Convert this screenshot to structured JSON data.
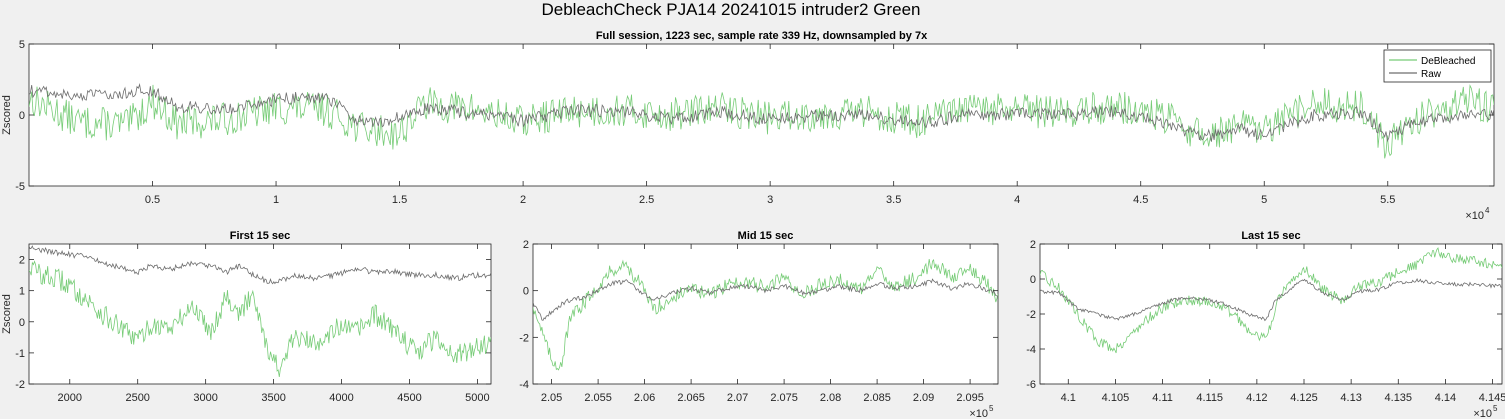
{
  "figure": {
    "title": "DebleachCheck PJA14 20241015  intruder2 Green"
  },
  "colors": {
    "debleached": "#77cc77",
    "raw": "#6e6e6e",
    "background": "#f0f0f0",
    "axes": "#ffffff"
  },
  "chart_data": [
    {
      "type": "line",
      "title": "Full session, 1223 sec, sample rate 339 Hz, downsampled by 7x",
      "xlabel": "",
      "ylabel": "Zscored",
      "xlim": [
        0,
        59300
      ],
      "ylim": [
        -5,
        5
      ],
      "xticks": [
        5000,
        10000,
        15000,
        20000,
        25000,
        30000,
        35000,
        40000,
        45000,
        50000,
        55000
      ],
      "xtick_labels": [
        "0.5",
        "1",
        "1.5",
        "2",
        "2.5",
        "3",
        "3.5",
        "4",
        "4.5",
        "5",
        "5.5"
      ],
      "x_exponent": "4",
      "yticks": [
        -5,
        0,
        5
      ],
      "ytick_labels": [
        "-5",
        "0",
        "5"
      ],
      "legend": [
        "DeBleached",
        "Raw"
      ],
      "legend_position": "top-right",
      "grid": false,
      "series": [
        {
          "name": "DeBleached",
          "x": [
            0,
            2000,
            4000,
            5000,
            6000,
            8000,
            10000,
            12000,
            13500,
            15000,
            16000,
            18000,
            20000,
            22000,
            24000,
            26000,
            28000,
            30000,
            32000,
            34000,
            36000,
            38000,
            40000,
            42000,
            44000,
            46000,
            47500,
            49000,
            50000,
            52000,
            54000,
            55000,
            56000,
            58000,
            59300
          ],
          "values": [
            1.2,
            -0.5,
            -0.7,
            1.0,
            -0.6,
            -0.3,
            0.5,
            0.4,
            -1.0,
            -1.3,
            0.8,
            0.4,
            -0.5,
            0.3,
            0.3,
            0.0,
            0.5,
            -0.2,
            0.1,
            0.2,
            -0.5,
            0.4,
            0.3,
            0.2,
            0.6,
            -0.2,
            -1.5,
            -0.8,
            -1.2,
            0.8,
            0.5,
            -2.2,
            -0.4,
            1.0,
            0.6
          ]
        },
        {
          "name": "Raw",
          "x": [
            0,
            2000,
            4000,
            5000,
            6000,
            8000,
            10000,
            12000,
            13500,
            15000,
            16000,
            18000,
            20000,
            22000,
            24000,
            26000,
            28000,
            30000,
            32000,
            34000,
            36000,
            38000,
            40000,
            42000,
            44000,
            46000,
            47500,
            49000,
            50000,
            52000,
            54000,
            55000,
            56000,
            58000,
            59300
          ],
          "values": [
            1.7,
            1.3,
            1.6,
            1.8,
            0.6,
            0.4,
            1.1,
            1.3,
            -0.6,
            -0.2,
            0.5,
            0.1,
            -0.4,
            0.3,
            0.3,
            -0.3,
            0.2,
            -0.3,
            0.0,
            0.0,
            -0.6,
            0.0,
            0.1,
            0.0,
            0.3,
            -0.6,
            -1.6,
            -1.0,
            -1.4,
            0.0,
            0.2,
            -1.6,
            -0.6,
            0.0,
            0.1
          ]
        }
      ]
    },
    {
      "type": "line",
      "title": "First 15 sec",
      "xlabel": "",
      "ylabel": "Zscored",
      "xlim": [
        1700,
        5100
      ],
      "ylim": [
        -2,
        2.5
      ],
      "xticks": [
        2000,
        2500,
        3000,
        3500,
        4000,
        4500,
        5000
      ],
      "xtick_labels": [
        "2000",
        "2500",
        "3000",
        "3500",
        "4000",
        "4500",
        "5000"
      ],
      "yticks": [
        -2,
        -1,
        0,
        1,
        2
      ],
      "ytick_labels": [
        "-2",
        "-1",
        "0",
        "1",
        "2"
      ],
      "grid": false,
      "series": [
        {
          "name": "DeBleached",
          "x": [
            1700,
            1800,
            1950,
            2100,
            2250,
            2400,
            2500,
            2600,
            2750,
            2900,
            3050,
            3150,
            3250,
            3350,
            3450,
            3550,
            3650,
            3800,
            3950,
            4100,
            4250,
            4400,
            4550,
            4700,
            4850,
            5000,
            5100
          ],
          "values": [
            1.8,
            1.5,
            1.3,
            0.8,
            0.2,
            -0.3,
            -0.6,
            -0.1,
            -0.2,
            0.5,
            -0.3,
            0.9,
            0.2,
            1.0,
            -0.8,
            -1.6,
            -0.5,
            -0.7,
            -0.2,
            -0.3,
            0.2,
            -0.3,
            -1.0,
            -0.5,
            -1.1,
            -0.8,
            -0.6
          ]
        },
        {
          "name": "Raw",
          "x": [
            1700,
            1800,
            1950,
            2100,
            2250,
            2400,
            2500,
            2600,
            2750,
            2900,
            3050,
            3150,
            3250,
            3350,
            3450,
            3550,
            3650,
            3800,
            3950,
            4100,
            4250,
            4400,
            4550,
            4700,
            4850,
            5000,
            5100
          ],
          "values": [
            2.4,
            2.3,
            2.2,
            2.1,
            1.9,
            1.7,
            1.6,
            1.8,
            1.7,
            1.9,
            1.8,
            1.6,
            1.8,
            1.5,
            1.3,
            1.3,
            1.5,
            1.4,
            1.5,
            1.7,
            1.6,
            1.6,
            1.5,
            1.5,
            1.4,
            1.5,
            1.5
          ]
        }
      ]
    },
    {
      "type": "line",
      "title": "Mid 15 sec",
      "xlabel": "",
      "ylabel": "",
      "xlim": [
        204800,
        209800
      ],
      "ylim": [
        -4,
        2
      ],
      "xticks": [
        205000,
        205500,
        206000,
        206500,
        207000,
        207500,
        208000,
        208500,
        209000,
        209500
      ],
      "xtick_labels": [
        "2.05",
        "2.055",
        "2.06",
        "2.065",
        "2.07",
        "2.075",
        "2.08",
        "2.085",
        "2.09",
        "2.095"
      ],
      "x_exponent": "5",
      "yticks": [
        -4,
        -2,
        0,
        2
      ],
      "ytick_labels": [
        "-4",
        "-2",
        "0",
        "2"
      ],
      "grid": false,
      "series": [
        {
          "name": "DeBleached",
          "x": [
            204800,
            204900,
            205000,
            205100,
            205200,
            205350,
            205500,
            205650,
            205800,
            205950,
            206100,
            206300,
            206500,
            206700,
            206900,
            207100,
            207300,
            207500,
            207700,
            207900,
            208100,
            208300,
            208500,
            208700,
            208900,
            209100,
            209300,
            209500,
            209700,
            209800
          ],
          "values": [
            -0.6,
            -1.8,
            -3.0,
            -3.2,
            -1.2,
            -0.5,
            0.2,
            0.9,
            1.1,
            0.3,
            -0.8,
            -0.3,
            0.1,
            -0.2,
            0.3,
            0.4,
            0.1,
            0.6,
            -0.2,
            0.3,
            0.5,
            0.0,
            0.8,
            0.2,
            0.5,
            1.2,
            0.6,
            1.0,
            0.2,
            -0.4
          ]
        },
        {
          "name": "Raw",
          "x": [
            204800,
            204900,
            205000,
            205100,
            205200,
            205350,
            205500,
            205650,
            205800,
            205950,
            206100,
            206300,
            206500,
            206700,
            206900,
            207100,
            207300,
            207500,
            207700,
            207900,
            208100,
            208300,
            208500,
            208700,
            208900,
            209100,
            209300,
            209500,
            209700,
            209800
          ],
          "values": [
            -0.5,
            -1.2,
            -0.9,
            -0.6,
            -0.4,
            -0.3,
            0.0,
            0.3,
            0.4,
            0.0,
            -0.4,
            -0.1,
            0.1,
            -0.1,
            0.1,
            0.2,
            0.0,
            0.2,
            -0.1,
            0.0,
            0.2,
            0.0,
            0.3,
            0.1,
            0.2,
            0.4,
            0.1,
            0.3,
            0.0,
            -0.2
          ]
        }
      ]
    },
    {
      "type": "line",
      "title": "Last 15 sec",
      "xlabel": "",
      "ylabel": "",
      "xlim": [
        409700,
        414600
      ],
      "ylim": [
        -6,
        2
      ],
      "xticks": [
        410000,
        410500,
        411000,
        411500,
        412000,
        412500,
        413000,
        413500,
        414000,
        414500
      ],
      "xtick_labels": [
        "4.1",
        "4.105",
        "4.11",
        "4.115",
        "4.12",
        "4.125",
        "4.13",
        "4.135",
        "4.14",
        "4.145"
      ],
      "x_exponent": "5",
      "yticks": [
        -6,
        -4,
        -2,
        0,
        2
      ],
      "ytick_labels": [
        "-6",
        "-4",
        "-2",
        "0",
        "2"
      ],
      "grid": false,
      "series": [
        {
          "name": "DeBleached",
          "x": [
            409700,
            409900,
            410100,
            410300,
            410500,
            410700,
            410900,
            411100,
            411300,
            411500,
            411700,
            411900,
            412100,
            412200,
            412300,
            412500,
            412700,
            412900,
            413100,
            413300,
            413500,
            413700,
            413900,
            414100,
            414300,
            414500,
            414600
          ],
          "values": [
            0.3,
            -0.5,
            -2.0,
            -3.5,
            -4.0,
            -3.0,
            -2.0,
            -1.4,
            -1.2,
            -1.3,
            -1.8,
            -2.8,
            -3.5,
            -1.5,
            -0.6,
            0.7,
            -0.6,
            -1.2,
            -0.4,
            -0.2,
            0.4,
            0.8,
            1.5,
            1.2,
            1.0,
            0.8,
            0.8
          ]
        },
        {
          "name": "Raw",
          "x": [
            409700,
            409900,
            410100,
            410300,
            410500,
            410700,
            410900,
            411100,
            411300,
            411500,
            411700,
            411900,
            412100,
            412200,
            412300,
            412500,
            412700,
            412900,
            413100,
            413300,
            413500,
            413700,
            413900,
            414100,
            414300,
            414500,
            414600
          ],
          "values": [
            -0.7,
            -0.8,
            -1.7,
            -2.0,
            -2.3,
            -2.0,
            -1.6,
            -1.2,
            -1.1,
            -1.2,
            -1.5,
            -2.0,
            -2.3,
            -1.2,
            -0.8,
            0.0,
            -0.8,
            -1.2,
            -0.7,
            -0.6,
            -0.2,
            -0.1,
            -0.2,
            -0.3,
            -0.3,
            -0.4,
            -0.4
          ]
        }
      ]
    }
  ]
}
